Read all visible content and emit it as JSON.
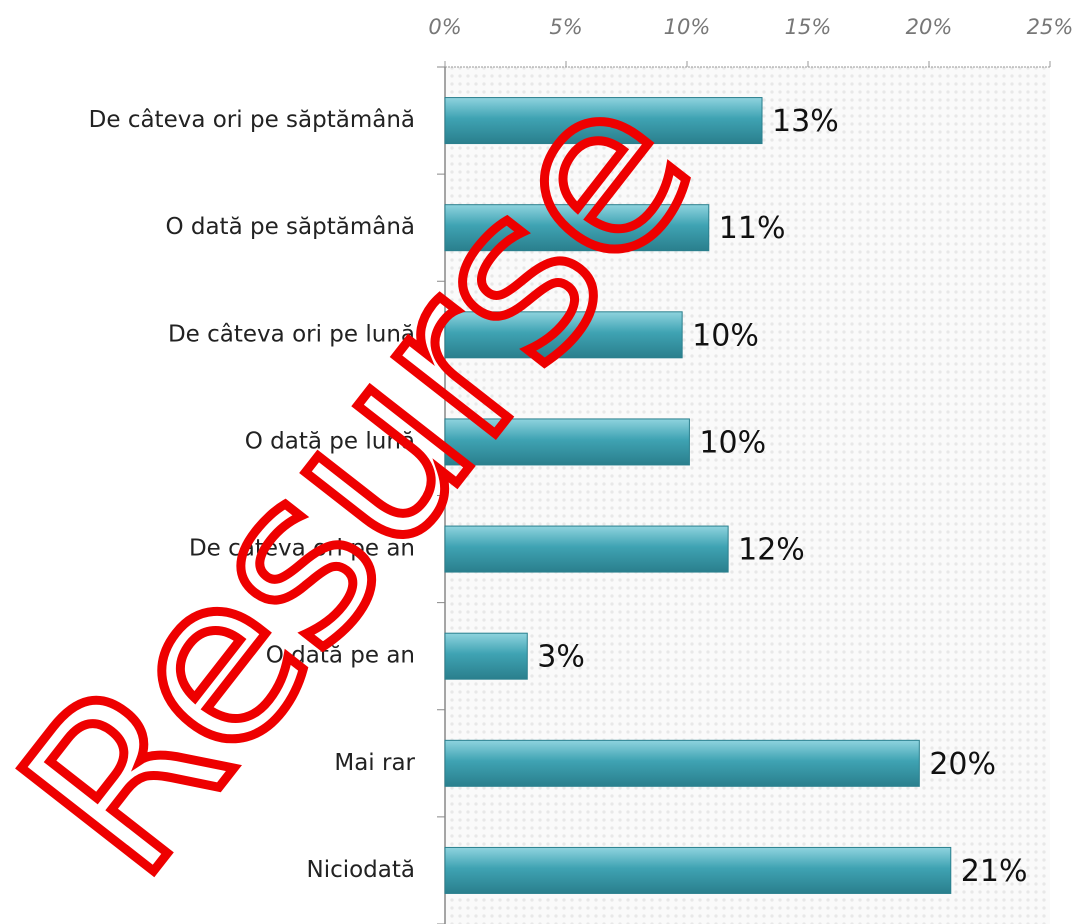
{
  "chart_data": {
    "type": "bar",
    "orientation": "horizontal",
    "categories": [
      "De câteva ori pe săptămână",
      "O dată pe săptămână",
      "De câteva ori pe lună",
      "O dată pe lună",
      "De câteva ori pe an",
      "O dată pe an",
      "Mai rar",
      "Niciodată"
    ],
    "values": [
      13.1,
      10.9,
      9.8,
      10.1,
      11.7,
      3.4,
      19.6,
      20.9
    ],
    "value_labels": [
      "13%",
      "11%",
      "10%",
      "10%",
      "12%",
      "3%",
      "20%",
      "21%"
    ],
    "color": "#3fa3b3",
    "xlim": [
      0,
      25
    ],
    "xticks": [
      {
        "value": 0,
        "label": "0%"
      },
      {
        "value": 5,
        "label": "5%"
      },
      {
        "value": 10,
        "label": "10%"
      },
      {
        "value": 15,
        "label": "15%"
      },
      {
        "value": 20,
        "label": "20%"
      },
      {
        "value": 25,
        "label": "25%"
      }
    ],
    "watermark": "Resurse"
  }
}
